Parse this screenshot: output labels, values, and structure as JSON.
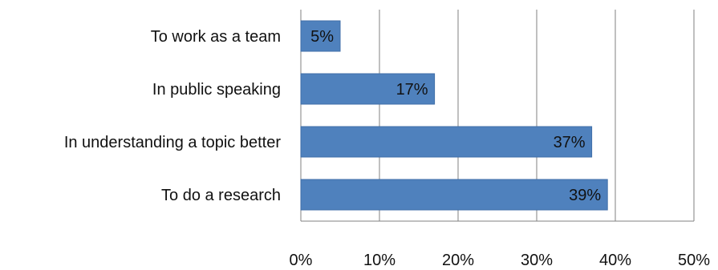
{
  "chart_data": {
    "type": "bar",
    "orientation": "horizontal",
    "categories": [
      "To work as a team",
      "In public speaking",
      "In understanding a topic better",
      "To do a research"
    ],
    "values": [
      5,
      17,
      37,
      39
    ],
    "data_labels": [
      "5%",
      "17%",
      "37%",
      "39%"
    ],
    "x_ticks": [
      "0%",
      "10%",
      "20%",
      "30%",
      "40%",
      "50%"
    ],
    "xlim": [
      0,
      50
    ],
    "title": "",
    "xlabel": "",
    "ylabel": "",
    "grid": "vertical",
    "legend": "none",
    "colors": {
      "bar": "#4f81bd",
      "bar_edge": "#3f6ea8",
      "grid": "#808080",
      "text": "#111111"
    }
  }
}
